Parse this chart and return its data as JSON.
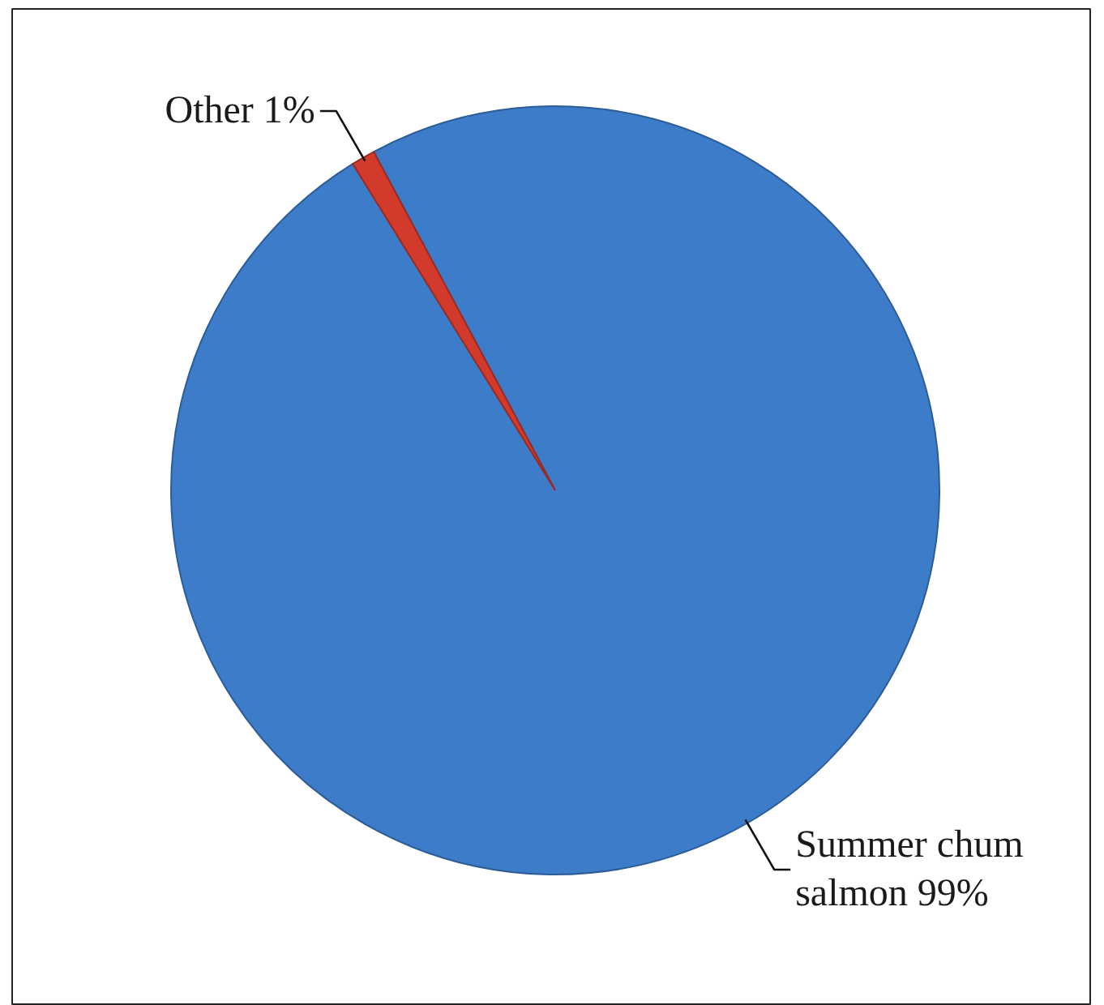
{
  "chart_data": {
    "type": "pie",
    "categories": [
      "Summer chum salmon",
      "Other"
    ],
    "values": [
      99,
      1
    ],
    "colors": [
      "#3d7cc9",
      "#d23a2c"
    ],
    "value_labels": [
      "99%",
      "1%"
    ]
  }
}
